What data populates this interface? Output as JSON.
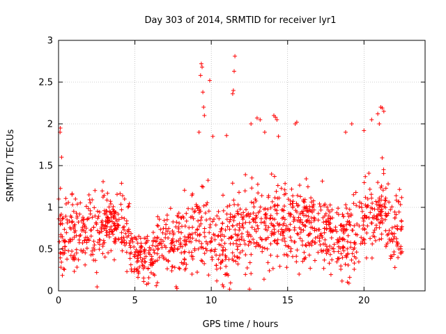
{
  "chart_data": {
    "type": "scatter",
    "title": "Day 303 of 2014, SRMTID for receiver lyr1",
    "xlabel": "GPS time / hours",
    "ylabel": "SRMTID / TECUs",
    "xlim": [
      0,
      24
    ],
    "ylim": [
      0,
      3
    ],
    "xticks": [
      0,
      5,
      10,
      15,
      20
    ],
    "yticks": [
      0,
      0.5,
      1,
      1.5,
      2,
      2.5,
      3
    ],
    "ytick_labels": [
      "0",
      "0.5",
      "1",
      "1.5",
      "2",
      "2.5",
      "3"
    ],
    "grid": true,
    "marker": "+",
    "series": [
      {
        "name": "lyr1",
        "color": "#ff0000",
        "envelope": {
          "x": [
            0.0,
            0.5,
            1.0,
            1.5,
            2.0,
            2.5,
            3.0,
            3.5,
            4.0,
            4.5,
            5.0,
            5.5,
            6.0,
            6.5,
            7.0,
            7.5,
            8.0,
            8.5,
            9.0,
            9.5,
            10.0,
            10.5,
            11.0,
            11.5,
            12.0,
            12.5,
            13.0,
            13.5,
            14.0,
            14.5,
            15.0,
            15.5,
            16.0,
            16.5,
            17.0,
            17.5,
            18.0,
            18.5,
            19.0,
            19.5,
            20.0,
            20.5,
            21.0,
            21.5,
            22.0,
            22.5
          ],
          "center": [
            0.75,
            0.65,
            0.7,
            0.75,
            0.8,
            0.65,
            0.8,
            0.85,
            0.8,
            0.65,
            0.45,
            0.38,
            0.45,
            0.6,
            0.6,
            0.55,
            0.6,
            0.65,
            0.75,
            0.85,
            0.6,
            0.55,
            0.6,
            0.7,
            0.75,
            0.8,
            0.8,
            0.85,
            0.9,
            0.85,
            0.75,
            0.8,
            0.85,
            0.85,
            0.8,
            0.75,
            0.65,
            0.6,
            0.65,
            0.75,
            0.85,
            0.9,
            0.95,
            0.85,
            0.75,
            0.75
          ],
          "spread": [
            0.45,
            0.4,
            0.4,
            0.4,
            0.45,
            0.4,
            0.4,
            0.35,
            0.35,
            0.35,
            0.25,
            0.25,
            0.3,
            0.35,
            0.35,
            0.35,
            0.4,
            0.45,
            0.5,
            0.5,
            0.45,
            0.4,
            0.45,
            0.45,
            0.45,
            0.45,
            0.5,
            0.5,
            0.5,
            0.45,
            0.4,
            0.4,
            0.45,
            0.45,
            0.4,
            0.4,
            0.4,
            0.4,
            0.45,
            0.45,
            0.5,
            0.5,
            0.5,
            0.45,
            0.4,
            0.4
          ]
        },
        "sample_count": 1400,
        "outliers": [
          [
            0.1,
            1.9
          ],
          [
            0.12,
            1.95
          ],
          [
            0.2,
            1.6
          ],
          [
            9.2,
            1.9
          ],
          [
            9.3,
            2.58
          ],
          [
            9.35,
            2.72
          ],
          [
            9.4,
            2.68
          ],
          [
            9.45,
            2.38
          ],
          [
            9.5,
            2.2
          ],
          [
            9.55,
            2.1
          ],
          [
            9.9,
            2.52
          ],
          [
            10.1,
            1.85
          ],
          [
            11.0,
            1.86
          ],
          [
            11.4,
            2.36
          ],
          [
            11.45,
            2.4
          ],
          [
            11.5,
            2.63
          ],
          [
            11.55,
            2.81
          ],
          [
            12.6,
            2.0
          ],
          [
            13.0,
            2.07
          ],
          [
            13.2,
            2.05
          ],
          [
            13.5,
            1.9
          ],
          [
            14.1,
            2.1
          ],
          [
            14.2,
            2.08
          ],
          [
            14.3,
            2.05
          ],
          [
            14.4,
            1.85
          ],
          [
            15.5,
            2.0
          ],
          [
            15.6,
            2.02
          ],
          [
            18.8,
            1.9
          ],
          [
            19.2,
            2.0
          ],
          [
            20.0,
            1.92
          ],
          [
            20.5,
            2.05
          ],
          [
            20.9,
            2.12
          ],
          [
            21.0,
            2.0
          ],
          [
            21.1,
            2.2
          ],
          [
            21.2,
            2.19
          ],
          [
            21.3,
            2.15
          ],
          [
            7.7,
            0.05
          ],
          [
            7.75,
            0.03
          ],
          [
            10.8,
            0.05
          ],
          [
            11.2,
            0.02
          ],
          [
            12.5,
            0.02
          ]
        ]
      }
    ]
  }
}
